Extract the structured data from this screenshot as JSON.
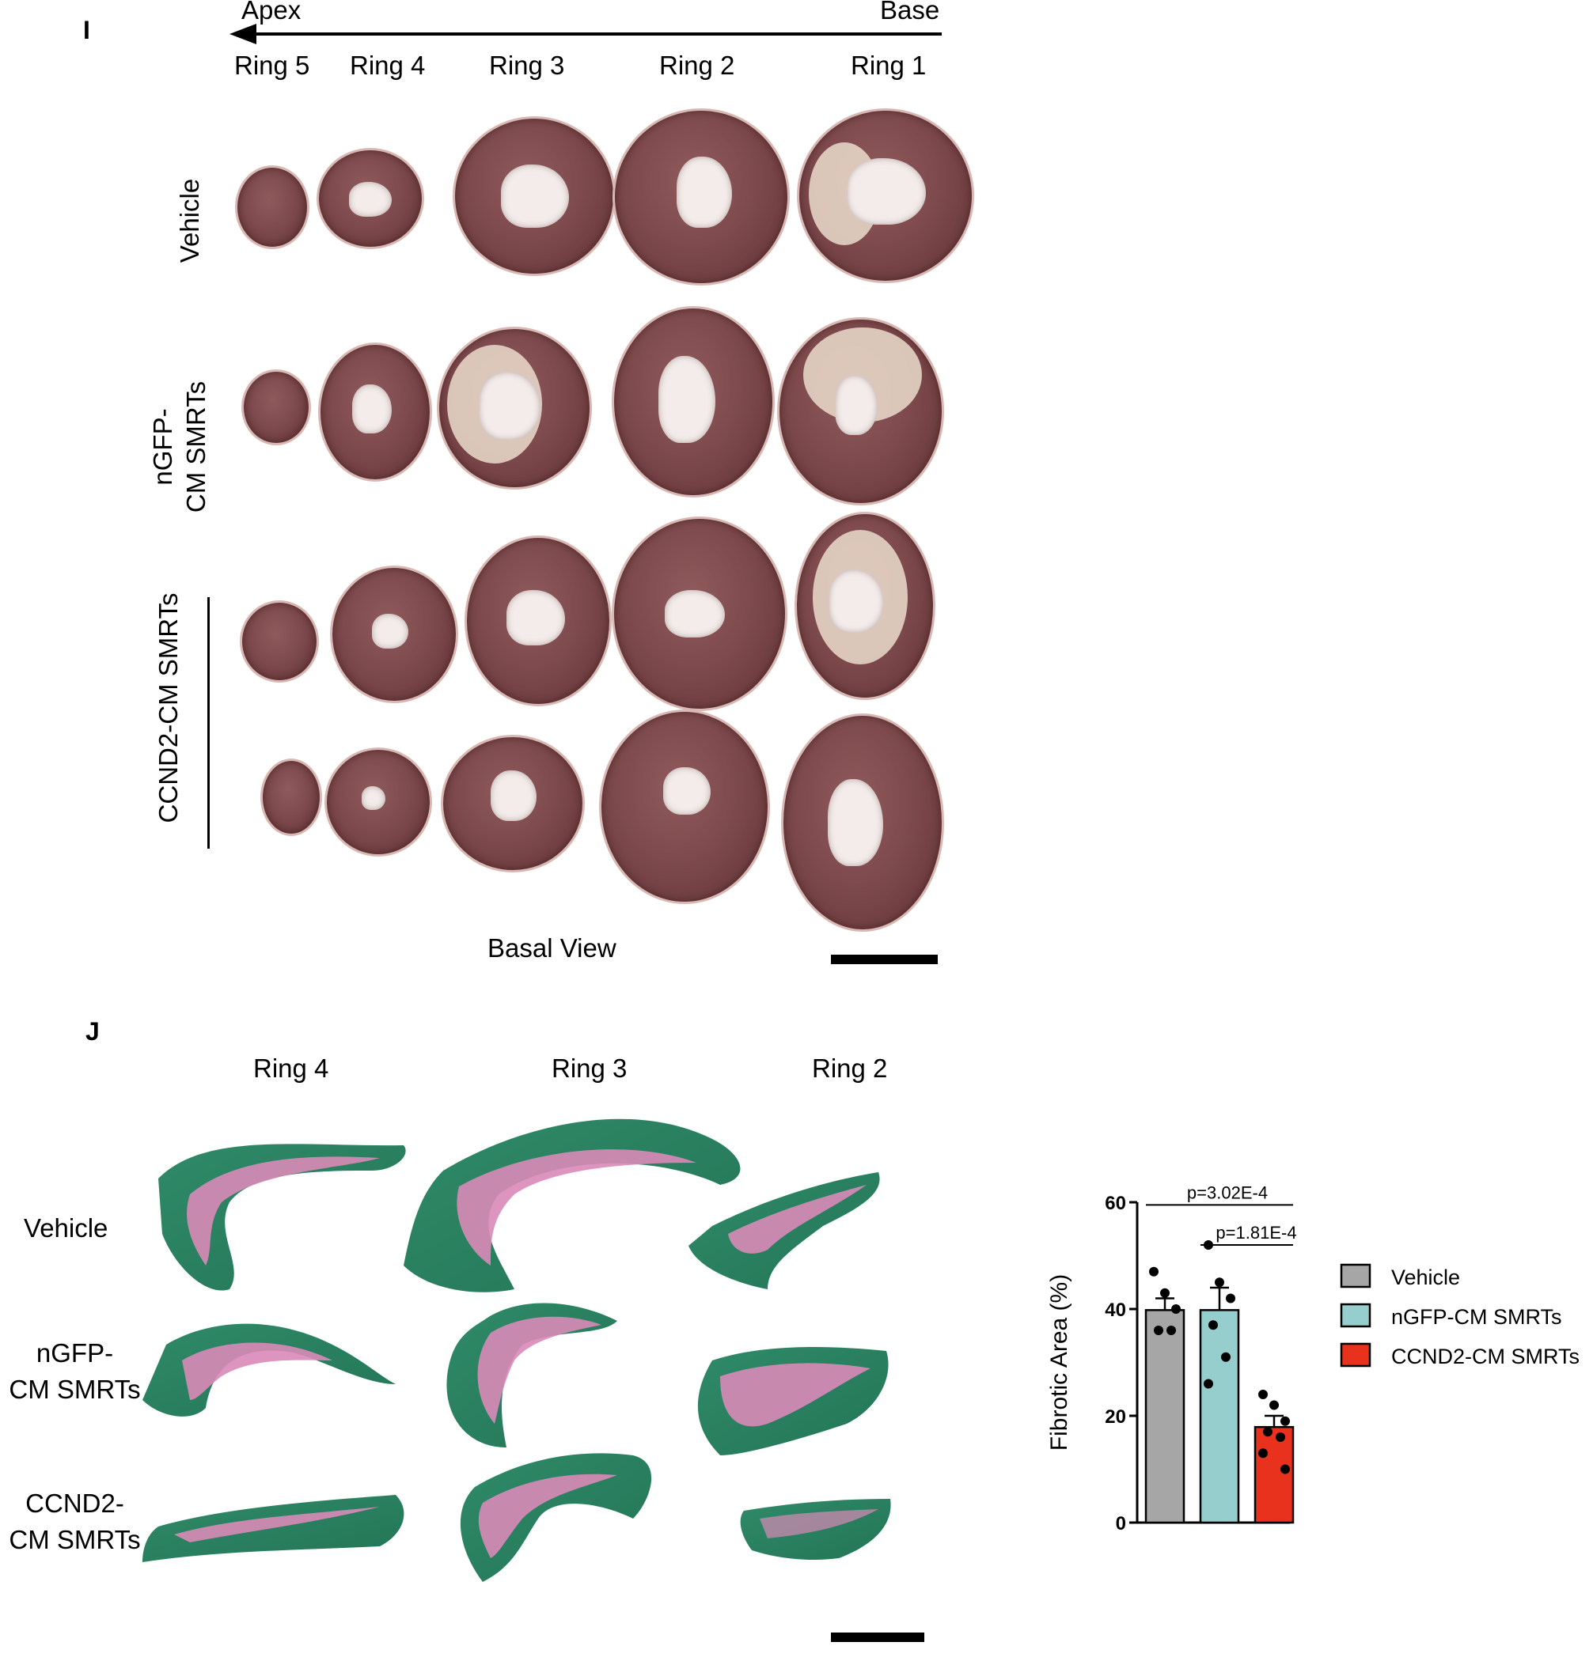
{
  "panel_i": {
    "letter": "I",
    "arrow_left": "Apex",
    "arrow_right": "Base",
    "rings": [
      "Ring 5",
      "Ring 4",
      "Ring 3",
      "Ring 2",
      "Ring 1"
    ],
    "row_labels": [
      "Vehicle",
      "nGFP-",
      "CM SMRTs",
      "CCND2-CM SMRTs"
    ],
    "footer": "Basal View"
  },
  "panel_j": {
    "letter": "J",
    "rings": [
      "Ring 4",
      "Ring 3",
      "Ring 2"
    ],
    "row_labels": {
      "vehicle": "Vehicle",
      "ngfp_1": "nGFP-",
      "ngfp_2": "CM SMRTs",
      "ccnd2_1": "CCND2-",
      "ccnd2_2": "CM SMRTs"
    }
  },
  "colors": {
    "vehicle": "#a6a6a6",
    "ngfp": "#96cdcd",
    "ccnd2": "#e8321e",
    "tissue_green": "#2e8f6a",
    "tissue_pink": "#d98ab8"
  },
  "chart_data": {
    "type": "bar",
    "categories": [
      "Vehicle",
      "nGFP-CM SMRTs",
      "CCND2-CM SMRTs"
    ],
    "values": [
      39.8,
      39.8,
      17.9
    ],
    "sem": [
      2.2,
      4.2,
      2.1
    ],
    "points": [
      [
        47,
        43,
        40,
        36,
        36
      ],
      [
        52,
        45,
        42,
        37,
        31,
        26
      ],
      [
        24,
        22,
        19,
        17,
        16,
        13,
        10
      ]
    ],
    "ylabel": "Fibrotic Area (%)",
    "ylim": [
      0,
      60
    ],
    "yticks": [
      0,
      20,
      40,
      60
    ],
    "ytick_labels": [
      "0",
      "20",
      "40",
      "60"
    ],
    "annotations": [
      "p=3.02E-4",
      "p=1.81E-4"
    ],
    "legend": [
      "Vehicle",
      "nGFP-CM SMRTs",
      "CCND2-CM SMRTs"
    ],
    "legend_position": "right"
  }
}
